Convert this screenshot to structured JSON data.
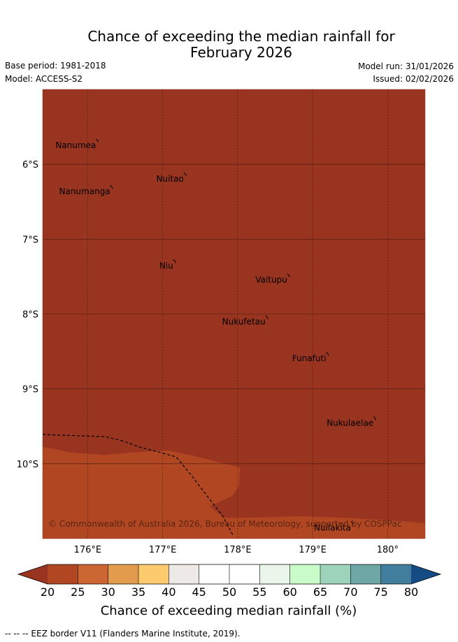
{
  "title": {
    "line1": "Chance of exceeding the median rainfall for",
    "line2": "February 2026"
  },
  "meta": {
    "base_period": "Base period: 1981-2018",
    "model": "Model: ACCESS-S2",
    "model_run": "Model run: 31/01/2026",
    "issued": "Issued: 02/02/2026"
  },
  "map": {
    "lon_range": [
      175.4,
      180.5
    ],
    "lat_range": [
      -11.0,
      -5.0
    ],
    "background_color": "#983420",
    "lower_zone_color": "#b04622",
    "latitude_labels": [
      "6°S",
      "7°S",
      "8°S",
      "9°S",
      "10°S"
    ],
    "longitude_labels": [
      "176°E",
      "177°E",
      "178°E",
      "179°E",
      "180°"
    ],
    "places": [
      {
        "name": "Nanumea",
        "lon": 176.13,
        "lat": -5.67
      },
      {
        "name": "Nuitao",
        "lon": 177.3,
        "lat": -6.12
      },
      {
        "name": "Nanumanga",
        "lon": 176.32,
        "lat": -6.29
      },
      {
        "name": "Niu",
        "lon": 177.16,
        "lat": -7.28
      },
      {
        "name": "Vaitupu",
        "lon": 178.68,
        "lat": -7.47
      },
      {
        "name": "Nukufetau",
        "lon": 178.39,
        "lat": -8.03
      },
      {
        "name": "Funafuti",
        "lon": 179.2,
        "lat": -8.52
      },
      {
        "name": "Nukulaelae",
        "lon": 179.83,
        "lat": -9.38
      },
      {
        "name": "Nuilakita",
        "lon": 179.53,
        "lat": -10.78
      }
    ],
    "copyright": "© Commonwealth of Australia 2026, Bureau of Meteorology, supported by COSPPac"
  },
  "colorbar": {
    "title": "Chance of exceeding median rainfall (%)",
    "ticks": [
      "20",
      "25",
      "30",
      "35",
      "40",
      "45",
      "50",
      "55",
      "60",
      "65",
      "70",
      "75",
      "80"
    ],
    "under_color": "#983420",
    "over_color": "#134b82",
    "colors": [
      "#983420",
      "#b04622",
      "#cc6633",
      "#e29a4c",
      "#fdcb6e",
      "#ede9e6",
      "#ffffff",
      "#ffffff",
      "#eaf6e9",
      "#c9fcc9",
      "#9dd3bb",
      "#6ea7a5",
      "#417e9e"
    ]
  },
  "footnote": "--  --  -- EEZ border V11 (Flanders Marine Institute, 2019)."
}
